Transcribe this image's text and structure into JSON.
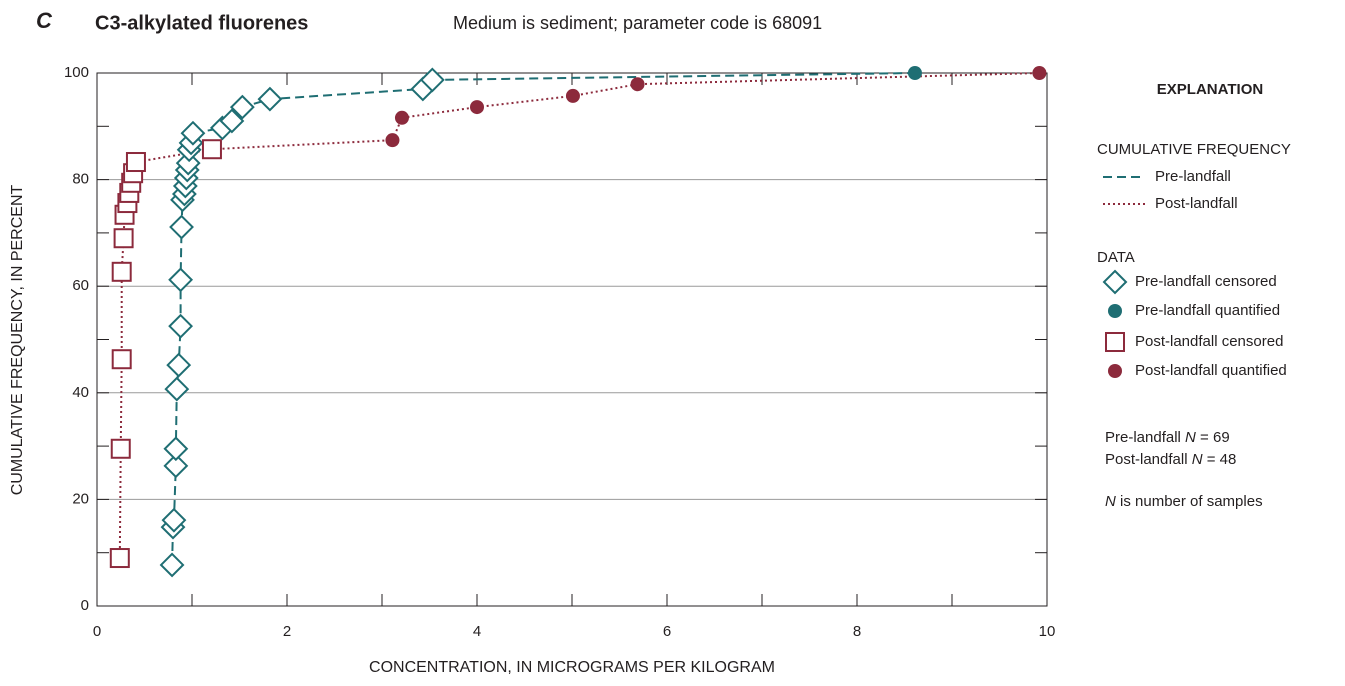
{
  "chart_data": {
    "type": "scatter",
    "panel_label": "C",
    "title": "C3-alkylated fluorenes",
    "subtitle": "Medium is sediment; parameter code is 68091",
    "xlabel": "CONCENTRATION, IN MICROGRAMS PER KILOGRAM",
    "ylabel": "CUMULATIVE FREQUENCY, IN PERCENT",
    "xlim": [
      0,
      10
    ],
    "xticks": [
      0,
      2,
      4,
      6,
      8,
      10
    ],
    "xticks_minor": [
      1,
      3,
      5,
      7,
      9
    ],
    "ylim": [
      0,
      100
    ],
    "yticks": [
      0,
      20,
      40,
      60,
      80,
      100
    ],
    "yticks_minor": [
      10,
      30,
      50,
      70,
      90
    ],
    "grid": true,
    "legend_title": "EXPLANATION",
    "legend_sections": [
      "CUMULATIVE FREQUENCY",
      "DATA"
    ],
    "lines": [
      {
        "name": "Pre-landfall",
        "color": "#1f6e73",
        "dash": "dashed",
        "x": [
          0.79,
          0.8,
          0.81,
          0.83,
          0.83,
          0.84,
          0.86,
          0.88,
          0.88,
          0.89,
          0.9,
          0.92,
          0.93,
          0.94,
          0.95,
          0.96,
          0.97,
          0.99,
          1.01,
          1.32,
          1.42,
          1.53,
          1.82,
          3.43,
          3.53,
          8.61
        ],
        "values": [
          7.7,
          14.8,
          16.1,
          26.3,
          29.5,
          40.7,
          45.2,
          52.5,
          61.2,
          71.1,
          76.2,
          77.3,
          78.8,
          80.3,
          81.8,
          83.1,
          85.6,
          86.9,
          88.7,
          89.7,
          91.0,
          93.6,
          95.1,
          97.0,
          98.7,
          100
        ]
      },
      {
        "name": "Post-landfall",
        "color": "#8c2a3c",
        "dash": "dotted",
        "x": [
          0.24,
          0.25,
          0.26,
          0.26,
          0.28,
          0.29,
          0.32,
          0.34,
          0.36,
          0.38,
          0.41,
          1.21,
          3.11,
          3.21,
          4.0,
          5.01,
          5.69,
          9.92
        ],
        "values": [
          9.0,
          29.5,
          46.3,
          62.7,
          69.0,
          73.4,
          75.6,
          77.5,
          79.4,
          81.2,
          83.3,
          85.7,
          87.4,
          91.6,
          93.6,
          95.7,
          97.9,
          100
        ]
      }
    ],
    "series": [
      {
        "name": "Pre-landfall censored",
        "marker": "diamond",
        "color": "#1f6e73",
        "x": [
          0.79,
          0.8,
          0.81,
          0.83,
          0.83,
          0.84,
          0.86,
          0.88,
          0.88,
          0.89,
          0.9,
          0.92,
          0.93,
          0.94,
          0.95,
          0.96,
          0.97,
          0.99,
          1.01,
          1.32,
          1.42,
          1.53,
          1.82,
          3.43,
          3.53
        ],
        "values": [
          7.7,
          14.8,
          16.1,
          26.3,
          29.5,
          40.7,
          45.2,
          52.5,
          61.2,
          71.1,
          76.2,
          77.3,
          78.8,
          80.3,
          81.8,
          83.1,
          85.6,
          86.9,
          88.7,
          89.7,
          91.0,
          93.6,
          95.1,
          97.0,
          98.7
        ]
      },
      {
        "name": "Pre-landfall quantified",
        "marker": "circle",
        "color": "#1f6e73",
        "x": [
          8.61
        ],
        "values": [
          100
        ]
      },
      {
        "name": "Post-landfall censored",
        "marker": "square",
        "color": "#8c2a3c",
        "x": [
          0.24,
          0.25,
          0.26,
          0.26,
          0.28,
          0.29,
          0.32,
          0.34,
          0.36,
          0.38,
          0.41,
          1.21
        ],
        "values": [
          9.0,
          29.5,
          46.3,
          62.7,
          69.0,
          73.4,
          75.6,
          77.5,
          79.4,
          81.2,
          83.3,
          85.7
        ]
      },
      {
        "name": "Post-landfall quantified",
        "marker": "circle",
        "color": "#8c2a3c",
        "x": [
          3.11,
          3.21,
          4.0,
          5.01,
          5.69,
          9.92
        ],
        "values": [
          87.4,
          91.6,
          93.6,
          95.7,
          97.9,
          100
        ]
      }
    ],
    "notes": [
      {
        "before": "Pre-landfall ",
        "symbol": "N",
        "after": " = 69"
      },
      {
        "before": "Post-landfall ",
        "symbol": "N",
        "after": " = 48"
      },
      {
        "before": "",
        "symbol": "N",
        "after": "  is number of samples"
      }
    ]
  }
}
